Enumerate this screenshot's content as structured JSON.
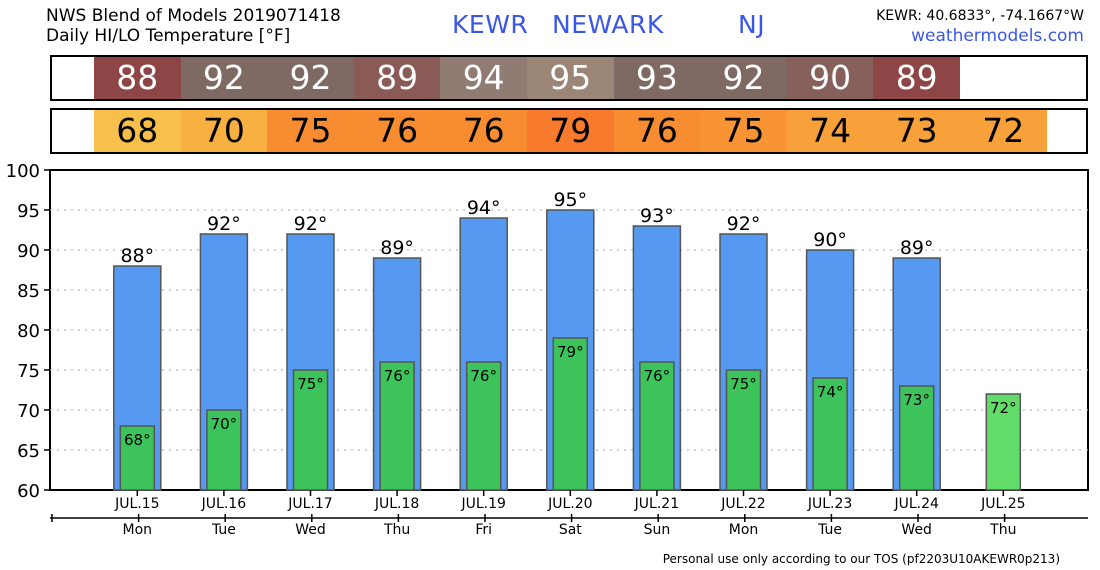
{
  "header": {
    "title_line1": "NWS Blend of Models 2019071418",
    "title_line2": "Daily HI/LO Temperature [°F]",
    "station_id": "KEWR",
    "station_name": "NEWARK",
    "state": "NJ",
    "coords": "KEWR: 40.6833°, -74.1667°W",
    "site": "weathermodels.com"
  },
  "footer": "Personal use only according to our TOS (pf2203U10AKEWR0p213)",
  "colors": {
    "hi_bar": "#5599f0",
    "lo_bar": "#3cc35a",
    "lo_bar_last": "#62dc68",
    "hi_strip": [
      "#8e4545",
      "#7f6a63",
      "#7f6a63",
      "#8a5a56",
      "#907c73",
      "#9a8576",
      "#7f6a63",
      "#7f6a63",
      "#88605b",
      "#8e4545"
    ],
    "lo_strip": [
      "#f8c04a",
      "#f8b040",
      "#f88c30",
      "#f88c30",
      "#f88c30",
      "#f87a2c",
      "#f88c30",
      "#f89434",
      "#f8a03a",
      "#f8a03a",
      "#f8a03a"
    ]
  },
  "chart_data": {
    "type": "bar",
    "categories": [
      "JUL.15",
      "JUL.16",
      "JUL.17",
      "JUL.18",
      "JUL.19",
      "JUL.20",
      "JUL.21",
      "JUL.22",
      "JUL.23",
      "JUL.24",
      "JUL.25"
    ],
    "days": [
      "Mon",
      "Tue",
      "Wed",
      "Thu",
      "Fri",
      "Sat",
      "Sun",
      "Mon",
      "Tue",
      "Wed",
      "Thu"
    ],
    "series": [
      {
        "values": [
          88,
          92,
          92,
          89,
          94,
          95,
          93,
          92,
          90,
          89,
          null
        ]
      },
      {
        "values": [
          68,
          70,
          75,
          76,
          76,
          79,
          76,
          75,
          74,
          73,
          72
        ]
      }
    ],
    "hi_labels": [
      "88°",
      "92°",
      "92°",
      "89°",
      "94°",
      "95°",
      "93°",
      "92°",
      "90°",
      "89°"
    ],
    "lo_labels": [
      "68°",
      "70°",
      "75°",
      "76°",
      "76°",
      "79°",
      "76°",
      "75°",
      "74°",
      "73°",
      "72°"
    ],
    "hi_strip_labels": [
      "88",
      "92",
      "92",
      "89",
      "94",
      "95",
      "93",
      "92",
      "90",
      "89"
    ],
    "lo_strip_labels": [
      "68",
      "70",
      "75",
      "76",
      "76",
      "79",
      "76",
      "75",
      "74",
      "73",
      "72"
    ],
    "y_ticks": [
      "100",
      "95",
      "90",
      "85",
      "80",
      "75",
      "70",
      "65",
      "60"
    ],
    "ylim": [
      60,
      100
    ],
    "grid": true
  }
}
